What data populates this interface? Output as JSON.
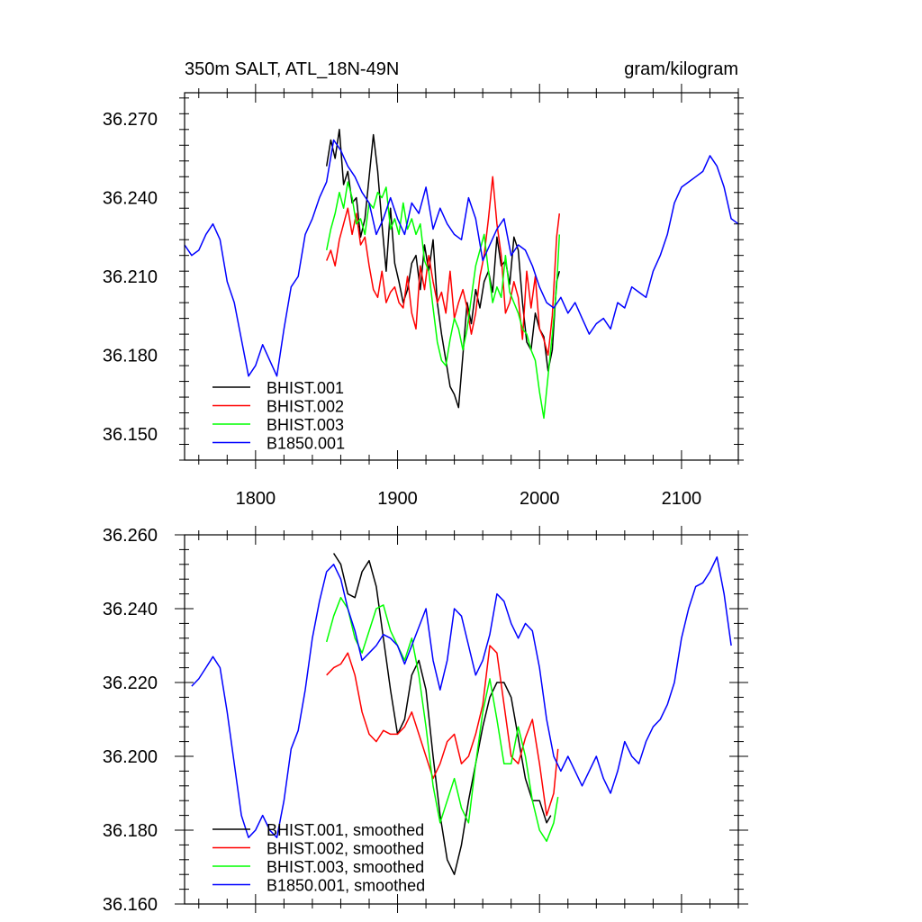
{
  "chart_data": [
    {
      "type": "line",
      "title": "350m SALT, ATL_18N-49N",
      "right_title": "gram/kilogram",
      "xlabel": "",
      "ylabel": "",
      "xlim": [
        1750,
        2140
      ],
      "ylim": [
        36.14,
        36.28
      ],
      "x_ticks": [
        1800,
        1900,
        2000,
        2100
      ],
      "x_tick_labels": [
        "1800",
        "1900",
        "2000",
        "2100"
      ],
      "y_ticks": [
        36.15,
        36.18,
        36.21,
        36.24,
        36.27
      ],
      "y_tick_labels": [
        "36.150",
        "36.180",
        "36.210",
        "36.240",
        "36.270"
      ],
      "grid": false,
      "legend_position": "bottom-left",
      "series": [
        {
          "name": "BHIST.001",
          "color": "#000000",
          "x": [
            1850,
            1853,
            1856,
            1859,
            1862,
            1865,
            1868,
            1871,
            1874,
            1877,
            1880,
            1883,
            1886,
            1889,
            1892,
            1895,
            1898,
            1901,
            1904,
            1907,
            1910,
            1913,
            1916,
            1919,
            1922,
            1925,
            1928,
            1931,
            1934,
            1937,
            1940,
            1943,
            1946,
            1949,
            1952,
            1955,
            1958,
            1961,
            1964,
            1967,
            1970,
            1973,
            1976,
            1979,
            1982,
            1985,
            1988,
            1991,
            1994,
            1997,
            2000,
            2003,
            2006,
            2009,
            2012,
            2014
          ],
          "values": [
            36.252,
            36.262,
            36.255,
            36.266,
            36.245,
            36.25,
            36.238,
            36.24,
            36.225,
            36.232,
            36.248,
            36.264,
            36.25,
            36.23,
            36.212,
            36.236,
            36.215,
            36.208,
            36.2,
            36.205,
            36.215,
            36.218,
            36.205,
            36.222,
            36.212,
            36.224,
            36.2,
            36.188,
            36.178,
            36.168,
            36.165,
            36.16,
            36.18,
            36.2,
            36.192,
            36.205,
            36.198,
            36.208,
            36.212,
            36.204,
            36.225,
            36.214,
            36.216,
            36.207,
            36.225,
            36.22,
            36.2,
            36.185,
            36.182,
            36.196,
            36.19,
            36.187,
            36.174,
            36.182,
            36.208,
            36.212
          ]
        },
        {
          "name": "BHIST.002",
          "color": "#ff0000",
          "x": [
            1850,
            1853,
            1856,
            1859,
            1862,
            1865,
            1868,
            1871,
            1874,
            1877,
            1880,
            1883,
            1886,
            1889,
            1892,
            1895,
            1898,
            1901,
            1904,
            1907,
            1910,
            1913,
            1916,
            1919,
            1922,
            1925,
            1928,
            1931,
            1934,
            1937,
            1940,
            1943,
            1946,
            1949,
            1952,
            1955,
            1958,
            1961,
            1964,
            1967,
            1970,
            1973,
            1976,
            1979,
            1982,
            1985,
            1988,
            1991,
            1994,
            1997,
            2000,
            2003,
            2006,
            2009,
            2012,
            2014
          ],
          "values": [
            36.216,
            36.22,
            36.214,
            36.224,
            36.23,
            36.236,
            36.226,
            36.234,
            36.222,
            36.225,
            36.214,
            36.205,
            36.202,
            36.212,
            36.2,
            36.204,
            36.206,
            36.2,
            36.198,
            36.21,
            36.196,
            36.19,
            36.214,
            36.205,
            36.218,
            36.208,
            36.2,
            36.204,
            36.196,
            36.212,
            36.194,
            36.2,
            36.205,
            36.198,
            36.188,
            36.196,
            36.21,
            36.218,
            36.232,
            36.248,
            36.23,
            36.218,
            36.196,
            36.2,
            36.208,
            36.202,
            36.186,
            36.212,
            36.198,
            36.21,
            36.19,
            36.186,
            36.18,
            36.195,
            36.225,
            36.234
          ]
        },
        {
          "name": "BHIST.003",
          "color": "#00ff00",
          "x": [
            1850,
            1853,
            1856,
            1859,
            1862,
            1865,
            1868,
            1871,
            1874,
            1877,
            1880,
            1883,
            1886,
            1889,
            1892,
            1895,
            1898,
            1901,
            1904,
            1907,
            1910,
            1913,
            1916,
            1919,
            1922,
            1925,
            1928,
            1931,
            1934,
            1937,
            1940,
            1943,
            1946,
            1949,
            1952,
            1955,
            1958,
            1961,
            1964,
            1967,
            1970,
            1973,
            1976,
            1979,
            1982,
            1985,
            1988,
            1991,
            1994,
            1997,
            2000,
            2003,
            2006,
            2009,
            2012,
            2014
          ],
          "values": [
            36.22,
            36.228,
            36.234,
            36.242,
            36.236,
            36.246,
            36.24,
            36.23,
            36.232,
            36.226,
            36.238,
            36.236,
            36.242,
            36.24,
            36.244,
            36.228,
            36.232,
            36.226,
            36.238,
            36.228,
            36.232,
            36.226,
            36.23,
            36.216,
            36.212,
            36.198,
            36.185,
            36.178,
            36.176,
            36.186,
            36.194,
            36.19,
            36.182,
            36.19,
            36.202,
            36.214,
            36.22,
            36.226,
            36.212,
            36.2,
            36.206,
            36.202,
            36.218,
            36.204,
            36.2,
            36.196,
            36.19,
            36.188,
            36.182,
            36.178,
            36.166,
            36.156,
            36.172,
            36.188,
            36.206,
            36.226
          ]
        },
        {
          "name": "B1850.001",
          "color": "#0000ff",
          "x": [
            1750,
            1755,
            1760,
            1765,
            1770,
            1775,
            1780,
            1785,
            1790,
            1795,
            1800,
            1805,
            1810,
            1815,
            1820,
            1825,
            1830,
            1835,
            1840,
            1845,
            1850,
            1855,
            1860,
            1865,
            1870,
            1875,
            1880,
            1885,
            1890,
            1895,
            1900,
            1905,
            1910,
            1915,
            1920,
            1925,
            1930,
            1935,
            1940,
            1945,
            1950,
            1955,
            1960,
            1965,
            1970,
            1975,
            1980,
            1985,
            1990,
            1995,
            2000,
            2005,
            2010,
            2015,
            2020,
            2025,
            2030,
            2035,
            2040,
            2045,
            2050,
            2055,
            2060,
            2065,
            2070,
            2075,
            2080,
            2085,
            2090,
            2095,
            2100,
            2105,
            2110,
            2115,
            2120,
            2125,
            2130,
            2135,
            2140
          ],
          "values": [
            36.222,
            36.218,
            36.22,
            36.226,
            36.23,
            36.224,
            36.208,
            36.2,
            36.186,
            36.172,
            36.176,
            36.184,
            36.178,
            36.172,
            36.19,
            36.206,
            36.21,
            36.226,
            36.232,
            36.24,
            36.246,
            36.262,
            36.258,
            36.252,
            36.248,
            36.242,
            36.238,
            36.226,
            36.232,
            36.24,
            36.232,
            36.226,
            36.238,
            36.234,
            36.244,
            36.228,
            36.236,
            36.23,
            36.226,
            36.224,
            36.24,
            36.232,
            36.216,
            36.222,
            36.228,
            36.232,
            36.218,
            36.222,
            36.22,
            36.214,
            36.206,
            36.2,
            36.198,
            36.202,
            36.196,
            36.2,
            36.194,
            36.188,
            36.192,
            36.194,
            36.19,
            36.2,
            36.198,
            36.206,
            36.204,
            36.202,
            36.212,
            36.218,
            36.226,
            36.238,
            36.244,
            36.246,
            36.248,
            36.25,
            36.256,
            36.252,
            36.244,
            36.232,
            36.23
          ]
        }
      ]
    },
    {
      "type": "line",
      "title": "",
      "xlabel": "",
      "ylabel": "",
      "xlim": [
        1750,
        2140
      ],
      "ylim": [
        36.16,
        36.26
      ],
      "x_ticks": [
        1800,
        1900,
        2000,
        2100
      ],
      "y_ticks": [
        36.16,
        36.18,
        36.2,
        36.22,
        36.24,
        36.26
      ],
      "y_tick_labels": [
        "36.160",
        "36.180",
        "36.200",
        "36.220",
        "36.240",
        "36.260"
      ],
      "grid": false,
      "legend_position": "bottom-left",
      "series": [
        {
          "name": "BHIST.001, smoothed",
          "color": "#000000",
          "x": [
            1855,
            1860,
            1865,
            1870,
            1875,
            1880,
            1885,
            1890,
            1895,
            1900,
            1905,
            1910,
            1915,
            1920,
            1925,
            1930,
            1935,
            1940,
            1945,
            1950,
            1955,
            1960,
            1965,
            1970,
            1975,
            1980,
            1985,
            1990,
            1995,
            2000,
            2005,
            2008
          ],
          "values": [
            36.255,
            36.252,
            36.244,
            36.243,
            36.25,
            36.253,
            36.246,
            36.232,
            36.218,
            36.206,
            36.21,
            36.222,
            36.226,
            36.218,
            36.2,
            36.184,
            36.172,
            36.168,
            36.176,
            36.188,
            36.198,
            36.208,
            36.216,
            36.22,
            36.22,
            36.216,
            36.205,
            36.194,
            36.188,
            36.188,
            36.182,
            36.184
          ]
        },
        {
          "name": "BHIST.002, smoothed",
          "color": "#ff0000",
          "x": [
            1850,
            1855,
            1860,
            1865,
            1870,
            1875,
            1880,
            1885,
            1890,
            1895,
            1900,
            1905,
            1910,
            1915,
            1920,
            1925,
            1930,
            1935,
            1940,
            1945,
            1950,
            1955,
            1960,
            1965,
            1970,
            1975,
            1980,
            1985,
            1990,
            1995,
            2000,
            2005,
            2010,
            2013
          ],
          "values": [
            36.222,
            36.224,
            36.225,
            36.228,
            36.222,
            36.212,
            36.206,
            36.204,
            36.207,
            36.206,
            36.206,
            36.208,
            36.212,
            36.206,
            36.2,
            36.194,
            36.198,
            36.204,
            36.206,
            36.198,
            36.2,
            36.206,
            36.214,
            36.23,
            36.228,
            36.214,
            36.2,
            36.198,
            36.205,
            36.21,
            36.198,
            36.184,
            36.19,
            36.202
          ]
        },
        {
          "name": "BHIST.003, smoothed",
          "color": "#00ff00",
          "x": [
            1850,
            1855,
            1860,
            1865,
            1870,
            1875,
            1880,
            1885,
            1890,
            1895,
            1900,
            1905,
            1910,
            1915,
            1920,
            1925,
            1930,
            1935,
            1940,
            1945,
            1950,
            1955,
            1960,
            1965,
            1970,
            1975,
            1980,
            1985,
            1990,
            1995,
            2000,
            2005,
            2010,
            2013
          ],
          "values": [
            36.231,
            36.238,
            36.243,
            36.24,
            36.232,
            36.228,
            36.234,
            36.24,
            36.241,
            36.234,
            36.23,
            36.226,
            36.232,
            36.222,
            36.208,
            36.192,
            36.182,
            36.188,
            36.194,
            36.186,
            36.182,
            36.198,
            36.212,
            36.221,
            36.21,
            36.198,
            36.198,
            36.208,
            36.2,
            36.188,
            36.18,
            36.177,
            36.182,
            36.189
          ]
        },
        {
          "name": "B1850.001, smoothed",
          "color": "#0000ff",
          "x": [
            1755,
            1760,
            1765,
            1770,
            1775,
            1780,
            1785,
            1790,
            1795,
            1800,
            1805,
            1810,
            1815,
            1820,
            1825,
            1830,
            1835,
            1840,
            1845,
            1850,
            1855,
            1860,
            1865,
            1870,
            1875,
            1880,
            1885,
            1890,
            1895,
            1900,
            1905,
            1910,
            1915,
            1920,
            1925,
            1930,
            1935,
            1940,
            1945,
            1950,
            1955,
            1960,
            1965,
            1970,
            1975,
            1980,
            1985,
            1990,
            1995,
            2000,
            2005,
            2010,
            2015,
            2020,
            2025,
            2030,
            2035,
            2040,
            2045,
            2050,
            2055,
            2060,
            2065,
            2070,
            2075,
            2080,
            2085,
            2090,
            2095,
            2100,
            2105,
            2110,
            2115,
            2120,
            2125,
            2130,
            2135
          ],
          "values": [
            36.219,
            36.221,
            36.224,
            36.227,
            36.224,
            36.212,
            36.198,
            36.184,
            36.178,
            36.18,
            36.184,
            36.18,
            36.178,
            36.188,
            36.202,
            36.207,
            36.218,
            36.232,
            36.242,
            36.25,
            36.252,
            36.248,
            36.24,
            36.234,
            36.226,
            36.228,
            36.23,
            36.233,
            36.232,
            36.23,
            36.225,
            36.23,
            36.235,
            36.24,
            36.226,
            36.218,
            36.226,
            36.24,
            36.238,
            36.23,
            36.222,
            36.226,
            36.233,
            36.244,
            36.242,
            36.236,
            36.232,
            36.236,
            36.234,
            36.224,
            36.21,
            36.2,
            36.196,
            36.2,
            36.196,
            36.192,
            36.196,
            36.2,
            36.194,
            36.19,
            36.196,
            36.204,
            36.2,
            36.198,
            36.204,
            36.208,
            36.21,
            36.214,
            36.22,
            36.232,
            36.24,
            36.246,
            36.247,
            36.25,
            36.254,
            36.244,
            36.23
          ]
        }
      ]
    }
  ]
}
